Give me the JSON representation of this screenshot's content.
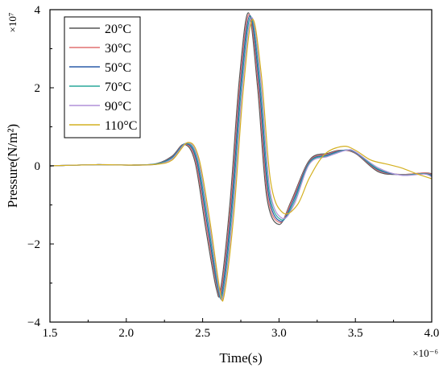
{
  "chart_data": {
    "type": "line",
    "xlabel": "Time(s)",
    "ylabel": "Pressure(N/m²)",
    "x_multiplier": "×10⁻⁶",
    "y_multiplier": "×10⁷",
    "xlim": [
      1.5,
      4.0
    ],
    "ylim": [
      -4,
      4
    ],
    "x_ticks": [
      1.5,
      2.0,
      2.5,
      3.0,
      3.5,
      4.0
    ],
    "x_tick_labels": [
      "1.5",
      "2.0",
      "2.5",
      "3.0",
      "3.5",
      "4.0"
    ],
    "y_ticks": [
      -4,
      -2,
      0,
      2,
      4
    ],
    "y_tick_labels": [
      "−4",
      "−2",
      "0",
      "2",
      "4"
    ],
    "grid": false,
    "legend_position": "top-left",
    "series": [
      {
        "name": "20°C",
        "color": "#555555",
        "x": [
          1.5,
          1.8,
          2.05,
          2.2,
          2.3,
          2.38,
          2.45,
          2.52,
          2.59,
          2.62,
          2.68,
          2.74,
          2.8,
          2.86,
          2.92,
          3.0,
          3.08,
          3.2,
          3.32,
          3.4,
          3.5,
          3.65,
          3.8,
          3.95,
          4.0
        ],
        "y": [
          0,
          0.03,
          0.02,
          0.06,
          0.25,
          0.55,
          0.1,
          -1.6,
          -3.15,
          -3.1,
          -0.9,
          2.2,
          3.92,
          2.0,
          -0.8,
          -1.5,
          -0.9,
          0.15,
          0.32,
          0.4,
          0.32,
          -0.15,
          -0.22,
          -0.18,
          -0.2
        ]
      },
      {
        "name": "30°C",
        "color": "#e07070",
        "x": [
          1.5,
          1.8,
          2.05,
          2.2,
          2.3,
          2.385,
          2.455,
          2.525,
          2.595,
          2.625,
          2.685,
          2.745,
          2.805,
          2.865,
          2.925,
          3.005,
          3.085,
          3.2,
          3.32,
          3.41,
          3.5,
          3.65,
          3.8,
          3.95,
          4.0
        ],
        "y": [
          0,
          0.03,
          0.02,
          0.05,
          0.23,
          0.56,
          0.12,
          -1.55,
          -3.12,
          -3.12,
          -0.95,
          2.15,
          3.88,
          2.05,
          -0.75,
          -1.45,
          -0.9,
          0.12,
          0.3,
          0.4,
          0.33,
          -0.12,
          -0.22,
          -0.18,
          -0.22
        ]
      },
      {
        "name": "50°C",
        "color": "#2a5ca8",
        "x": [
          1.5,
          1.8,
          2.05,
          2.2,
          2.3,
          2.39,
          2.46,
          2.53,
          2.6,
          2.63,
          2.69,
          2.75,
          2.81,
          2.87,
          2.93,
          3.01,
          3.09,
          3.2,
          3.32,
          3.42,
          3.5,
          3.65,
          3.8,
          3.95,
          4.0
        ],
        "y": [
          0,
          0.03,
          0.02,
          0.05,
          0.22,
          0.57,
          0.14,
          -1.5,
          -3.15,
          -3.15,
          -1.0,
          2.1,
          3.85,
          2.1,
          -0.7,
          -1.42,
          -0.92,
          0.1,
          0.28,
          0.4,
          0.34,
          -0.1,
          -0.23,
          -0.2,
          -0.24
        ]
      },
      {
        "name": "70°C",
        "color": "#2aa89a",
        "x": [
          1.5,
          1.8,
          2.05,
          2.2,
          2.3,
          2.395,
          2.465,
          2.535,
          2.605,
          2.635,
          2.695,
          2.755,
          2.815,
          2.875,
          2.935,
          3.015,
          3.095,
          3.2,
          3.32,
          3.43,
          3.5,
          3.65,
          3.8,
          3.95,
          4.0
        ],
        "y": [
          0,
          0.03,
          0.02,
          0.05,
          0.2,
          0.58,
          0.16,
          -1.45,
          -3.18,
          -3.18,
          -1.05,
          2.05,
          3.82,
          2.15,
          -0.65,
          -1.38,
          -0.95,
          0.08,
          0.26,
          0.4,
          0.35,
          -0.08,
          -0.23,
          -0.2,
          -0.26
        ]
      },
      {
        "name": "90°C",
        "color": "#b090d8",
        "x": [
          1.5,
          1.8,
          2.05,
          2.2,
          2.3,
          2.4,
          2.47,
          2.54,
          2.61,
          2.64,
          2.7,
          2.76,
          2.82,
          2.88,
          2.94,
          3.02,
          3.1,
          3.2,
          3.32,
          3.44,
          3.5,
          3.65,
          3.8,
          3.95,
          4.0
        ],
        "y": [
          0,
          0.03,
          0.02,
          0.04,
          0.18,
          0.59,
          0.18,
          -1.4,
          -3.2,
          -3.2,
          -1.1,
          2.0,
          3.8,
          2.2,
          -0.6,
          -1.34,
          -0.98,
          0.05,
          0.24,
          0.4,
          0.36,
          -0.05,
          -0.24,
          -0.21,
          -0.28
        ]
      },
      {
        "name": "110°C",
        "color": "#d4b020",
        "x": [
          1.5,
          1.8,
          2.05,
          2.2,
          2.3,
          2.405,
          2.475,
          2.545,
          2.615,
          2.645,
          2.705,
          2.765,
          2.825,
          2.885,
          2.945,
          3.025,
          3.12,
          3.2,
          3.3,
          3.42,
          3.5,
          3.6,
          3.7,
          3.8,
          3.9,
          4.0
        ],
        "y": [
          0,
          0.03,
          0.02,
          0.04,
          0.15,
          0.6,
          0.2,
          -1.35,
          -3.22,
          -3.22,
          -1.2,
          1.9,
          3.75,
          2.3,
          -0.4,
          -1.2,
          -1.0,
          -0.3,
          0.3,
          0.5,
          0.4,
          0.15,
          0.05,
          -0.05,
          -0.2,
          -0.33
        ]
      }
    ]
  }
}
